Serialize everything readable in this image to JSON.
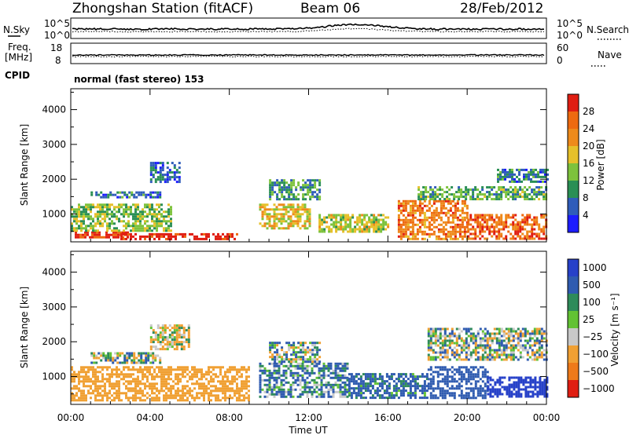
{
  "header": {
    "station": "Zhongshan Station (fitACF)",
    "beam": "Beam 06",
    "date": "28/Feb/2012"
  },
  "status_panels": {
    "nsky_label": "N.Sky",
    "nsearch_label": "N.Search",
    "noise_ticks_left": [
      "10^5",
      "10^0"
    ],
    "noise_ticks_right": [
      "10^5",
      "10^0"
    ],
    "freq_label_1": "Freq.",
    "freq_label_2": "[MHz]",
    "freq_ticks": [
      "18",
      "8"
    ],
    "nave_label": "Nave",
    "nave_ticks": [
      "60",
      "0"
    ],
    "cpid_label": "CPID",
    "cpid_text": "normal (fast stereo) 153"
  },
  "colorbars": {
    "power": {
      "label": "Power [dB]",
      "ticks": [
        "28",
        "24",
        "20",
        "16",
        "12",
        "8",
        "4"
      ],
      "colors": [
        "#1c1cff",
        "#2f5cba",
        "#2a8f55",
        "#7dc23c",
        "#e6c02a",
        "#ee8a1b",
        "#ee6a10",
        "#e01e12"
      ]
    },
    "velocity": {
      "label": "Velocity [m s⁻¹]",
      "ticks": [
        "1000",
        "500",
        "100",
        "25",
        "−25",
        "−100",
        "−500",
        "−1000"
      ],
      "colors": [
        "#2741c9",
        "#2f5bb0",
        "#2e8b5a",
        "#62c234",
        "#c8c8c8",
        "#f0a033",
        "#ee7a1a",
        "#e01e12"
      ]
    }
  },
  "axes": {
    "ylabel": "Slant Range [km]",
    "xlabel": "Time UT",
    "y_ticks": [
      "1000",
      "2000",
      "3000",
      "4000"
    ],
    "x_ticks": [
      "00:00",
      "04:00",
      "08:00",
      "12:00",
      "16:00",
      "20:00",
      "00:00"
    ]
  },
  "chart_data": [
    {
      "type": "heatmap",
      "title": "Power",
      "xlabel": "Time UT",
      "ylabel": "Slant Range [km]",
      "xlim": [
        0,
        24
      ],
      "ylim": [
        200,
        4600
      ],
      "colorbar_range_dB": [
        0,
        32
      ],
      "regions": [
        {
          "t": [
            0.2,
            3.0
          ],
          "r": [
            300,
            500
          ],
          "value": 30
        },
        {
          "t": [
            2.5,
            8.5
          ],
          "r": [
            300,
            450
          ],
          "value": 30
        },
        {
          "t": [
            0.0,
            5.0
          ],
          "r": [
            500,
            1300
          ],
          "value": 14
        },
        {
          "t": [
            1.0,
            4.5
          ],
          "r": [
            1450,
            1650
          ],
          "value": 8
        },
        {
          "t": [
            4.0,
            5.5
          ],
          "r": [
            1900,
            2500
          ],
          "value": 6
        },
        {
          "t": [
            9.5,
            12.0
          ],
          "r": [
            600,
            1300
          ],
          "value": 18
        },
        {
          "t": [
            10.0,
            12.5
          ],
          "r": [
            1400,
            2000
          ],
          "value": 10
        },
        {
          "t": [
            12.5,
            16.0
          ],
          "r": [
            500,
            1000
          ],
          "value": 16
        },
        {
          "t": [
            16.5,
            20.0
          ],
          "r": [
            300,
            1400
          ],
          "value": 24
        },
        {
          "t": [
            20.0,
            24.0
          ],
          "r": [
            300,
            1000
          ],
          "value": 26
        },
        {
          "t": [
            17.5,
            24.0
          ],
          "r": [
            1400,
            1800
          ],
          "value": 12
        },
        {
          "t": [
            21.5,
            24.0
          ],
          "r": [
            1900,
            2300
          ],
          "value": 8
        }
      ]
    },
    {
      "type": "heatmap",
      "title": "Velocity",
      "xlabel": "Time UT",
      "ylabel": "Slant Range [km]",
      "xlim": [
        0,
        24
      ],
      "ylim": [
        200,
        4600
      ],
      "colorbar_range_ms": [
        -1000,
        1000
      ],
      "regions": [
        {
          "t": [
            0.0,
            9.0
          ],
          "r": [
            300,
            1300
          ],
          "value": -300
        },
        {
          "t": [
            1.0,
            4.5
          ],
          "r": [
            1400,
            1700
          ],
          "value": 0
        },
        {
          "t": [
            4.0,
            6.0
          ],
          "r": [
            1800,
            2500
          ],
          "value": -100
        },
        {
          "t": [
            9.5,
            14.0
          ],
          "r": [
            400,
            1400
          ],
          "value": 100
        },
        {
          "t": [
            10.0,
            12.5
          ],
          "r": [
            1400,
            2000
          ],
          "value": 0
        },
        {
          "t": [
            14.0,
            18.0
          ],
          "r": [
            400,
            1100
          ],
          "value": 200
        },
        {
          "t": [
            18.0,
            21.0
          ],
          "r": [
            400,
            1300
          ],
          "value": 300
        },
        {
          "t": [
            21.0,
            24.0
          ],
          "r": [
            400,
            1000
          ],
          "value": 800
        },
        {
          "t": [
            18.0,
            24.0
          ],
          "r": [
            1500,
            2400
          ],
          "value": 0
        }
      ]
    }
  ]
}
